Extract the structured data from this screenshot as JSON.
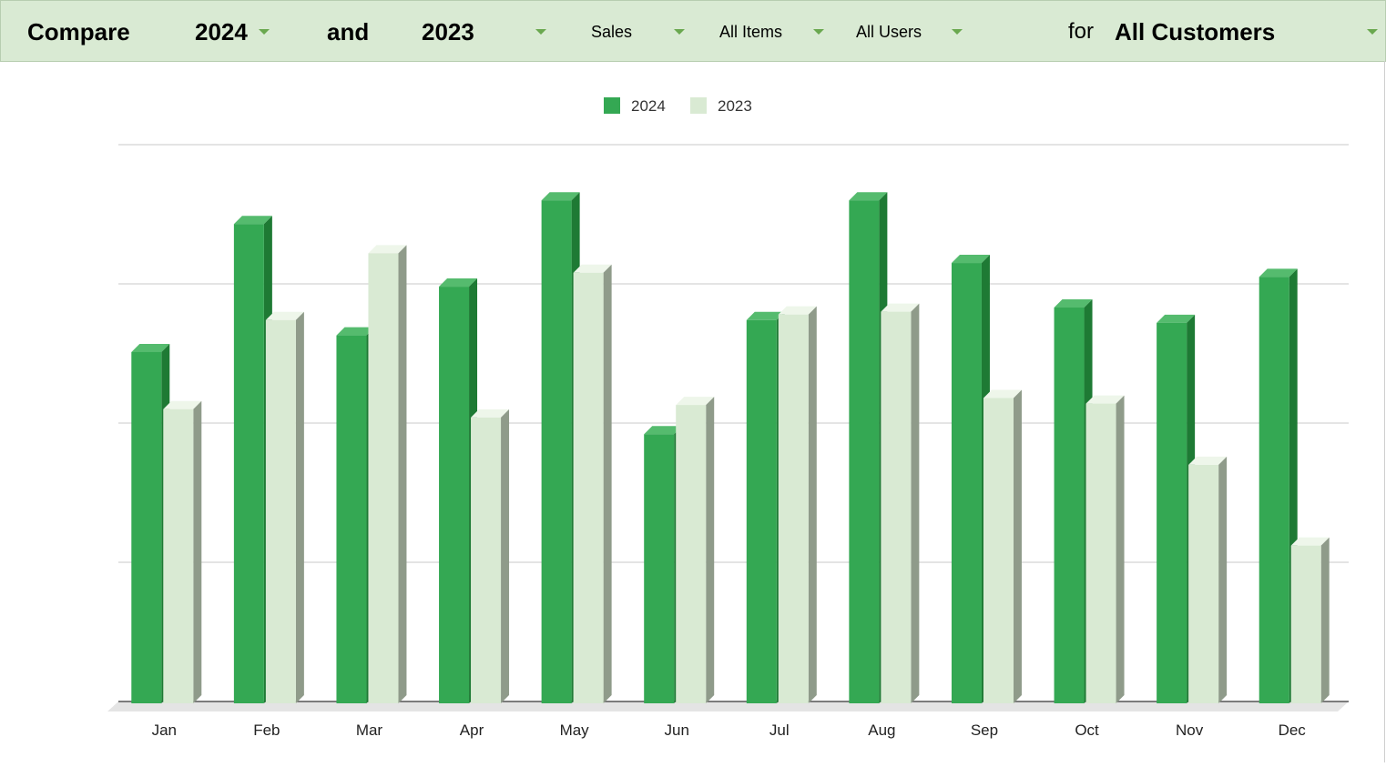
{
  "toolbar": {
    "compare_label": "Compare",
    "year_a": "2024",
    "and_label": "and",
    "year_b": "2023",
    "metric": "Sales",
    "items": "All Items",
    "users": "All Users",
    "for_label": "for",
    "customers": "All Customers"
  },
  "colors": {
    "series_2024": "#34a853",
    "series_2023": "#d9ead3",
    "toolbar_bg": "#d9ead3",
    "arrow": "#6aa84f"
  },
  "chart_data": {
    "type": "bar",
    "categories": [
      "Jan",
      "Feb",
      "Mar",
      "Apr",
      "May",
      "Jun",
      "Jul",
      "Aug",
      "Sep",
      "Oct",
      "Nov",
      "Dec"
    ],
    "series": [
      {
        "name": "2024",
        "values": [
          2.51,
          3.43,
          2.63,
          2.98,
          3.6,
          1.92,
          2.74,
          3.6,
          3.15,
          2.83,
          2.72,
          3.05
        ]
      },
      {
        "name": "2023",
        "values": [
          2.1,
          2.74,
          3.22,
          2.04,
          3.08,
          2.13,
          2.78,
          2.8,
          2.18,
          2.14,
          1.7,
          1.12
        ]
      }
    ],
    "ylim": [
      0,
      4
    ],
    "grid": true,
    "legend_position": "top-center",
    "three_d": true
  }
}
